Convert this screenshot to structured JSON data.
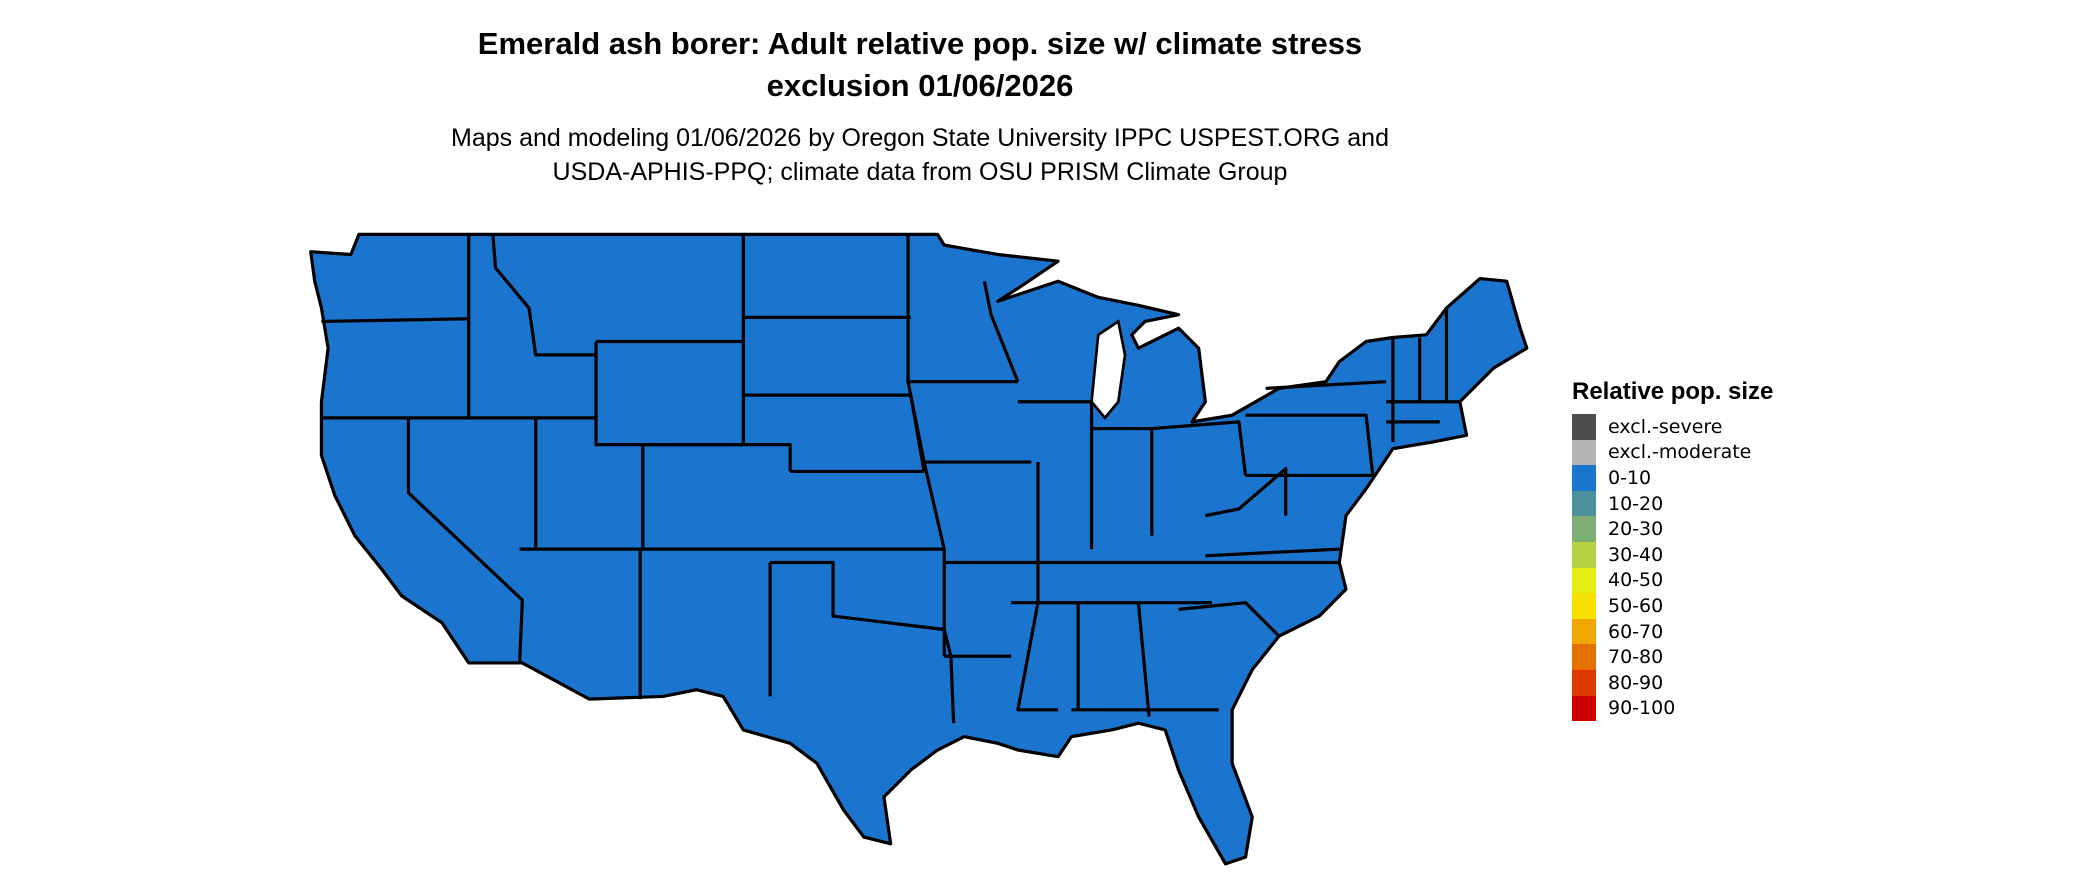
{
  "title": {
    "line1": "Emerald ash borer: Adult relative pop. size w/ climate stress",
    "line2": "exclusion 01/06/2026"
  },
  "subtitle": {
    "line1": "Maps and modeling 01/06/2026 by Oregon State University IPPC USPEST.ORG and",
    "line2": "USDA-APHIS-PPQ; climate data from OSU PRISM Climate Group"
  },
  "map": {
    "region": "Contiguous United States",
    "fill_color": "#1B75CF",
    "uniform_category": "0-10"
  },
  "legend": {
    "title": "Relative pop. size",
    "items": [
      {
        "label": "excl.-severe",
        "color": "#4D4D4D"
      },
      {
        "label": "excl.-moderate",
        "color": "#B3B3B3"
      },
      {
        "label": "0-10",
        "color": "#1B75CF"
      },
      {
        "label": "10-20",
        "color": "#4A919C"
      },
      {
        "label": "20-30",
        "color": "#7DAF74"
      },
      {
        "label": "30-40",
        "color": "#B4D045"
      },
      {
        "label": "40-50",
        "color": "#E5EF17"
      },
      {
        "label": "50-60",
        "color": "#F7E100"
      },
      {
        "label": "60-70",
        "color": "#F0A800"
      },
      {
        "label": "70-80",
        "color": "#E57200"
      },
      {
        "label": "80-90",
        "color": "#DC3800"
      },
      {
        "label": "90-100",
        "color": "#CC0000"
      }
    ]
  }
}
